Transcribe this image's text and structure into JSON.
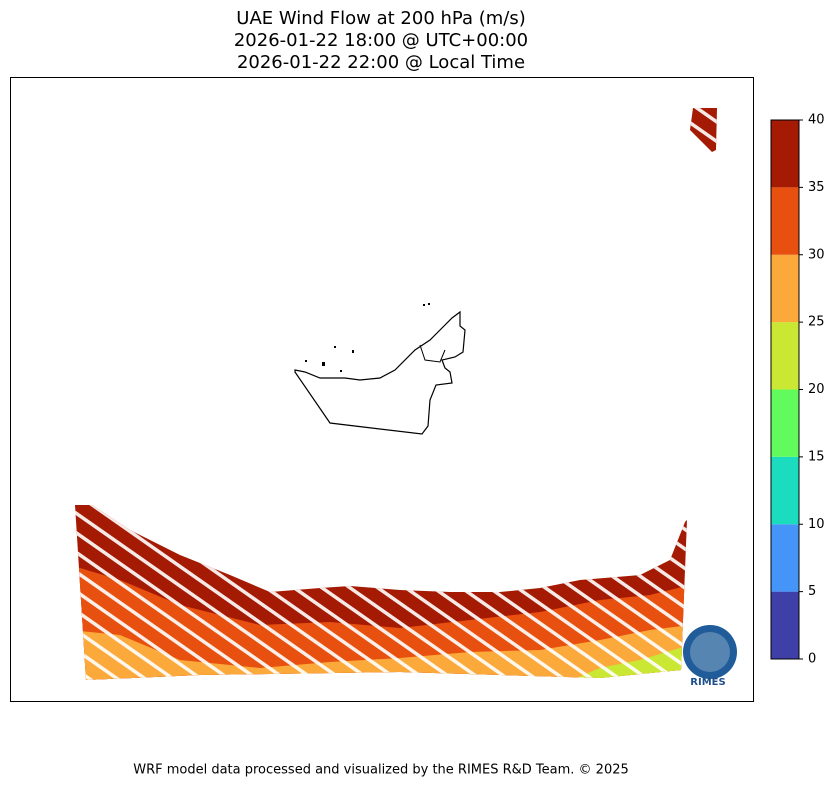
{
  "title": [
    "UAE Wind Flow at 200 hPa (m/s)",
    "2026-01-22 18:00 @ UTC+00:00",
    "2026-01-22 22:00 @ Local Time"
  ],
  "colorbar": {
    "ticks": [
      0,
      5,
      10,
      15,
      20,
      25,
      30,
      35,
      40
    ],
    "colors": [
      "#3f3fa8",
      "#4594f8",
      "#1bdcbe",
      "#62fb5e",
      "#cae833",
      "#fba93a",
      "#e8500f",
      "#a51a03"
    ]
  },
  "logo": "RIMES",
  "footer": "WRF model data processed and visualized by the RIMES R&D Team. © 2025"
}
